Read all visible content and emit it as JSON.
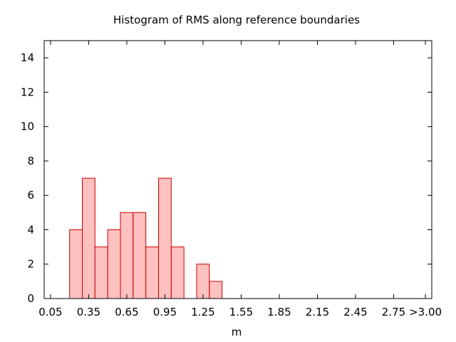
{
  "chart_data": {
    "type": "bar",
    "title": "Histogram of RMS along reference boundaries",
    "xlabel": "m",
    "ylabel": "",
    "xlim": [
      0.0,
      3.05
    ],
    "ylim": [
      0,
      15
    ],
    "bin_width": 0.1,
    "x_ticks": [
      {
        "value": 0.05,
        "label": "0.05"
      },
      {
        "value": 0.35,
        "label": "0.35"
      },
      {
        "value": 0.65,
        "label": "0.65"
      },
      {
        "value": 0.95,
        "label": "0.95"
      },
      {
        "value": 1.25,
        "label": "1.25"
      },
      {
        "value": 1.55,
        "label": "1.55"
      },
      {
        "value": 1.85,
        "label": "1.85"
      },
      {
        "value": 2.15,
        "label": "2.15"
      },
      {
        "value": 2.45,
        "label": "2.45"
      },
      {
        "value": 2.75,
        "label": "2.75"
      },
      {
        "value": 3.0,
        "label": ">3.00"
      }
    ],
    "y_ticks": [
      {
        "value": 0,
        "label": "0"
      },
      {
        "value": 2,
        "label": "2"
      },
      {
        "value": 4,
        "label": "4"
      },
      {
        "value": 6,
        "label": "6"
      },
      {
        "value": 8,
        "label": "8"
      },
      {
        "value": 10,
        "label": "10"
      },
      {
        "value": 12,
        "label": "12"
      },
      {
        "value": 14,
        "label": "14"
      }
    ],
    "bins": [
      {
        "x": 0.25,
        "count": 4
      },
      {
        "x": 0.35,
        "count": 7
      },
      {
        "x": 0.45,
        "count": 3
      },
      {
        "x": 0.55,
        "count": 4
      },
      {
        "x": 0.65,
        "count": 5
      },
      {
        "x": 0.75,
        "count": 5
      },
      {
        "x": 0.85,
        "count": 3
      },
      {
        "x": 0.95,
        "count": 7
      },
      {
        "x": 1.05,
        "count": 3
      },
      {
        "x": 1.25,
        "count": 2
      },
      {
        "x": 1.35,
        "count": 1
      }
    ],
    "bar_fill": "#ffc0c0",
    "bar_stroke": "#cc0000",
    "grid": false,
    "legend": "none"
  }
}
